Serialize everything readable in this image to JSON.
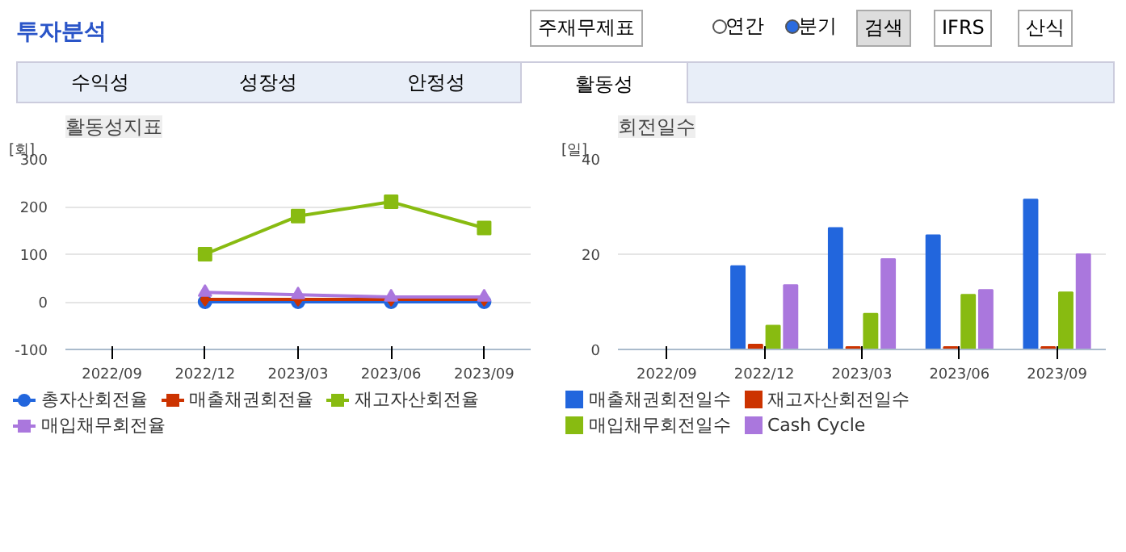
{
  "chart_data": [
    {
      "type": "other",
      "title": "투자분석",
      "annotations": [
        "주재무제표",
        "연간",
        "분기",
        "검색",
        "IFRS",
        "산식",
        "수익성",
        "성장성",
        "안정성",
        "활동성"
      ]
    },
    {
      "type": "line",
      "title": "활동성지표",
      "ylabel": "[회]",
      "categories": [
        "2022/09",
        "2022/12",
        "2023/03",
        "2023/06",
        "2023/09"
      ],
      "ylim": [
        -100,
        300
      ],
      "yticks": [
        -100,
        0,
        100,
        200,
        300
      ],
      "grid": "y",
      "legend": "bottom",
      "line_style": "solid",
      "series": [
        {
          "name": "총자산회전율",
          "color": "#2266dd",
          "marker": "circle",
          "values": [
            null,
            0,
            0,
            0,
            0
          ]
        },
        {
          "name": "매출채권회전율",
          "color": "#cc3300",
          "marker": "diamond",
          "values": [
            null,
            5,
            5,
            5,
            5
          ]
        },
        {
          "name": "재고자산회전율",
          "color": "#88bb11",
          "marker": "square",
          "values": [
            null,
            100,
            180,
            210,
            155
          ]
        },
        {
          "name": "매입채무회전율",
          "color": "#aa77dd",
          "marker": "triangle",
          "values": [
            null,
            20,
            15,
            10,
            10
          ]
        }
      ]
    },
    {
      "type": "bar",
      "title": "회전일수",
      "ylabel": "[일]",
      "categories": [
        "2022/09",
        "2022/12",
        "2023/03",
        "2023/06",
        "2023/09"
      ],
      "ylim": [
        0,
        40
      ],
      "yticks": [
        0,
        20,
        40
      ],
      "grid": "y",
      "legend": "bottom",
      "series": [
        {
          "name": "매출채권회전일수",
          "color": "#2266dd",
          "values": [
            null,
            17.5,
            25.5,
            24,
            31.5
          ]
        },
        {
          "name": "재고자산회전일수",
          "color": "#cc3300",
          "values": [
            null,
            1,
            0.5,
            0.5,
            0.5
          ]
        },
        {
          "name": "매입채무회전일수",
          "color": "#88bb11",
          "values": [
            null,
            5,
            7.5,
            11.5,
            12
          ]
        },
        {
          "name": "Cash Cycle",
          "color": "#aa77dd",
          "values": [
            null,
            13.5,
            19,
            12.5,
            20
          ]
        }
      ]
    }
  ]
}
